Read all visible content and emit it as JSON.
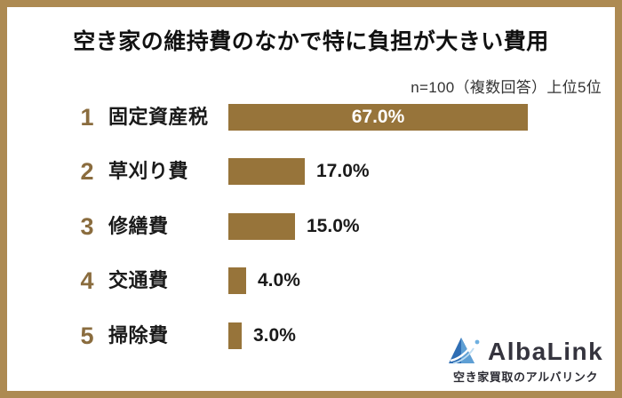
{
  "frame": {
    "border_color": "#ad8a52",
    "background": "#ffffff"
  },
  "header": {
    "title": "空き家の維持費のなかで特に負担が大きい費用",
    "sample_note": "n=100（複数回答）上位5位"
  },
  "chart_data": {
    "type": "bar",
    "orientation": "horizontal",
    "title": "空き家の維持費のなかで特に負担が大きい費用",
    "note": "n=100（複数回答）上位5位",
    "ranks": [
      "1",
      "2",
      "3",
      "4",
      "5"
    ],
    "categories": [
      "固定資産税",
      "草刈り費",
      "修繕費",
      "交通費",
      "掃除費"
    ],
    "values": [
      67.0,
      17.0,
      15.0,
      4.0,
      3.0
    ],
    "value_labels": [
      "67.0%",
      "17.0%",
      "15.0%",
      "4.0%",
      "3.0%"
    ],
    "xlim": [
      0,
      100
    ],
    "bar_color": "#97743a",
    "rank_color": "#8a6c3e",
    "value_label_placement": [
      "inside",
      "outside",
      "outside",
      "outside",
      "outside"
    ]
  },
  "branding": {
    "name": "AlbaLink",
    "tagline": "空き家買取のアルバリンク",
    "icon": "mountain-triangle-logo",
    "colors": {
      "primary_blue": "#2f6eb4",
      "light_blue": "#5e9fd4",
      "dot_blue": "#6fb0e0",
      "text": "#35343e"
    }
  }
}
